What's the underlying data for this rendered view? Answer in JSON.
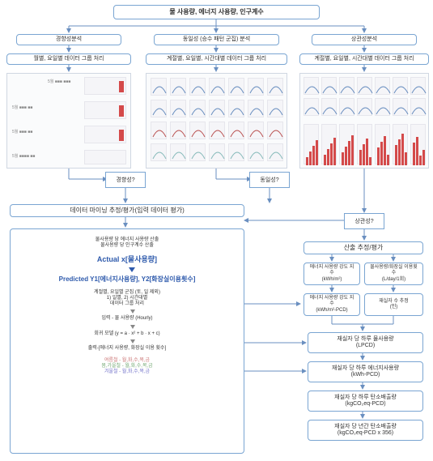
{
  "top": {
    "title": "물 사용량, 에너지 사용량, 인구계수"
  },
  "row1": {
    "left": "경향성분석",
    "center": "동일성 (승수 패턴 군집) 분석",
    "right": "상관성분석"
  },
  "row2": {
    "left": "월별, 요일별 데이터 그룹 처리",
    "center": "계절별, 요일별, 시간대별 데이터 그룹 처리",
    "right": "계절별, 요일별, 시간대별 데이터 그룹 처리"
  },
  "diamonds": {
    "d1": "경향성?",
    "d2": "동일성?",
    "d3": "상관성?"
  },
  "mid": {
    "header": "데이터 마이닝 추정/평가(입력 데이터 평가)",
    "calc_header": "산출 추정/평가"
  },
  "left_block": {
    "l1": "물사용량 당 에너지 사용량 산출",
    "l2": "물사용량 당 인구계수 산출",
    "actual": "Actual x[물사용량]",
    "pred": "Predicted Y1[에너지사용량], Y2[화장실이용횟수]",
    "g1": "계절별, 요일별 군집 (토, 일 제외)",
    "g2": "1) 일별, 2) 시간대별",
    "g3": "데이터 그룹 처리",
    "input": "입력 - 물 사용량 (Hourly)",
    "model": "회귀 모델 (y = a · x² + b · x + c)",
    "output": "출력-[에너지 사용량, 화장실 이용 횟수]",
    "s1": "여름철 - 월,화,수,목,금",
    "s2": "봄,가을철 - 월,화,수,목,금",
    "s3": "겨울철 - 월,화,수,목,금"
  },
  "right_block": {
    "b1a": "에너지 사용량 강도 지수",
    "b1b": "(kWh/m²)",
    "b2a": "물사용량/화장실 이용횟수",
    "b2b": "(L/day/1회)",
    "b3a": "에너지 사용량 강도 지수",
    "b3b": "(kWh/m²-PCD)",
    "b4a": "재실자 수 추정",
    "b4b": "(인)",
    "b5a": "재실자 당 하루 물사용량",
    "b5b": "(LPCD)",
    "b6a": "재실자 당 하루 에너지사용량",
    "b6b": "(kWh-PCD)",
    "b7a": "재실자 당 하루 탄소배출량",
    "b7b": "(kgCO₂eq-PCD)",
    "b8a": "재실자 당 년간 탄소배출량",
    "b8b": "(kgCO₂eq-PCD x 356)"
  },
  "colors": {
    "border": "#7aa5d2",
    "arrow": "#6a8fc0",
    "blue_text": "#2e5aac",
    "red": "#d44a4a",
    "bg": "#ffffff"
  }
}
